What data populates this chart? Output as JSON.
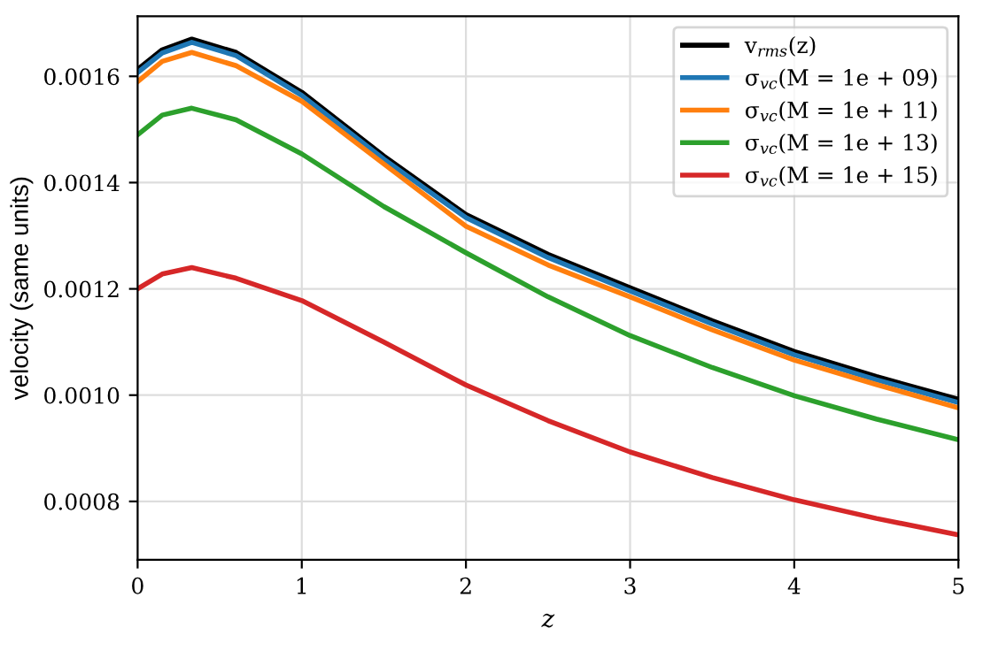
{
  "chart_data": {
    "type": "line",
    "xlabel": "z",
    "ylabel": "velocity (same units)",
    "x": [
      0,
      0.15,
      0.33,
      0.6,
      1,
      1.5,
      2,
      2.5,
      3,
      3.5,
      4,
      4.5,
      5
    ],
    "series": [
      {
        "name": "v$_{rms}$(z)",
        "color": "#000000",
        "values": [
          0.001613,
          0.00165,
          0.00167,
          0.001645,
          0.00157,
          0.00145,
          0.00134,
          0.001265,
          0.001202,
          0.00114,
          0.001082,
          0.001035,
          0.000992
        ]
      },
      {
        "name": "σ$_{vc}$(M = 1e + 09)",
        "color": "#1f77b4",
        "values": [
          0.001607,
          0.001644,
          0.001664,
          0.001639,
          0.001564,
          0.001444,
          0.001334,
          0.001259,
          0.001196,
          0.001134,
          0.001076,
          0.001029,
          0.000986
        ]
      },
      {
        "name": "σ$_{vc}$(M = 1e + 11)",
        "color": "#ff7f0e",
        "values": [
          0.00159,
          0.001628,
          0.001645,
          0.00162,
          0.001553,
          0.001435,
          0.001318,
          0.001245,
          0.001185,
          0.001123,
          0.001066,
          0.00102,
          0.000976
        ]
      },
      {
        "name": "σ$_{vc}$(M = 1e + 13)",
        "color": "#2ca02c",
        "values": [
          0.00149,
          0.001527,
          0.00154,
          0.001518,
          0.001454,
          0.001355,
          0.001268,
          0.001185,
          0.001112,
          0.001052,
          0.000999,
          0.000955,
          0.000916
        ]
      },
      {
        "name": "σ$_{vc}$(M = 1e + 15)",
        "color": "#d62728",
        "values": [
          0.0012,
          0.001228,
          0.00124,
          0.00122,
          0.001178,
          0.0011,
          0.001019,
          0.000952,
          0.000893,
          0.000845,
          0.000803,
          0.000768,
          0.000737
        ]
      }
    ],
    "xlim": [
      0,
      5
    ],
    "xticks": [
      0,
      1,
      2,
      3,
      4,
      5
    ],
    "ylim": [
      0.00069,
      0.001713
    ],
    "yticks": [
      {
        "value": 0.0008,
        "label": "0.0008"
      },
      {
        "value": 0.001,
        "label": "0.0010"
      },
      {
        "value": 0.0012,
        "label": "0.0012"
      },
      {
        "value": 0.0014,
        "label": "0.0014"
      },
      {
        "value": 0.0016,
        "label": "0.0016"
      }
    ],
    "grid": true,
    "legend": "top right",
    "line_style": "solid",
    "marker": "none"
  }
}
